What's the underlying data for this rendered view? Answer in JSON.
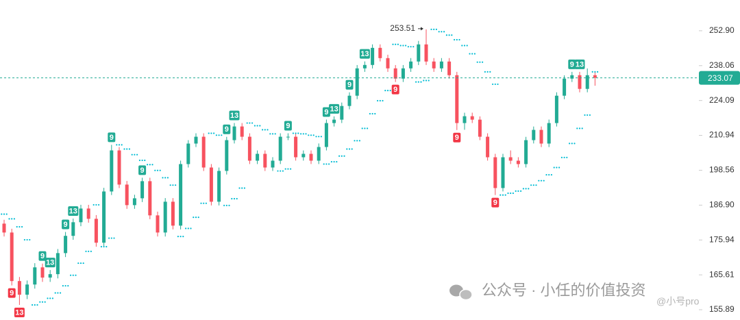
{
  "chart_data": {
    "type": "candlestick",
    "log_scale": true,
    "grid": false,
    "up_color": "#22ab94",
    "down_color": "#f7525f",
    "sar_color": "#00bcd4",
    "ylim": [
      153.14,
      266.76
    ],
    "yticks": [
      {
        "value": 252.9,
        "label": "252.90"
      },
      238.06,
      224.09,
      210.94,
      198.56,
      {
        "value": 186.9,
        "label": "186.90"
      },
      175.94,
      165.61,
      155.89
    ],
    "candles": [
      [
        181.0,
        182.2,
        177.0,
        178.23
      ],
      [
        178.23,
        179.4,
        162.6,
        163.84
      ],
      [
        163.84,
        165.0,
        157.2,
        160.01
      ],
      [
        160.01,
        164.0,
        158.8,
        162.86
      ],
      [
        162.86,
        169.0,
        161.7,
        167.78
      ],
      [
        167.78,
        168.9,
        163.6,
        164.83
      ],
      [
        164.83,
        167.0,
        163.6,
        165.81
      ],
      [
        165.81,
        173.2,
        164.6,
        171.98
      ],
      [
        171.98,
        178.4,
        170.8,
        177.2
      ],
      [
        177.2,
        182.6,
        176.0,
        181.44
      ],
      [
        181.44,
        187.0,
        180.2,
        185.8
      ],
      [
        185.8,
        187.0,
        181.3,
        182.52
      ],
      [
        182.52,
        183.7,
        173.9,
        175.11
      ],
      [
        175.11,
        192.6,
        173.9,
        191.38
      ],
      [
        191.38,
        207.5,
        190.2,
        205.51
      ],
      [
        205.51,
        206.7,
        192.5,
        193.68
      ],
      [
        193.68,
        194.9,
        185.7,
        186.9
      ],
      [
        186.9,
        190.3,
        185.7,
        189.13
      ],
      [
        189.13,
        196.0,
        187.9,
        194.83
      ],
      [
        194.83,
        196.0,
        182.4,
        183.61
      ],
      [
        183.61,
        184.8,
        177.0,
        178.23
      ],
      [
        178.23,
        189.2,
        177.0,
        188.01
      ],
      [
        188.01,
        189.2,
        179.2,
        180.37
      ],
      [
        180.37,
        201.9,
        179.2,
        200.69
      ],
      [
        200.69,
        209.2,
        199.5,
        207.96
      ],
      [
        207.96,
        211.7,
        206.7,
        210.44
      ],
      [
        210.44,
        211.7,
        198.3,
        199.5
      ],
      [
        199.5,
        200.7,
        186.8,
        188.01
      ],
      [
        188.01,
        199.5,
        186.8,
        198.33
      ],
      [
        198.33,
        210.4,
        197.1,
        209.2
      ],
      [
        209.2,
        215.5,
        208.0,
        214.22
      ],
      [
        214.22,
        215.5,
        209.2,
        210.44
      ],
      [
        210.44,
        211.7,
        200.7,
        201.88
      ],
      [
        201.88,
        205.5,
        200.7,
        204.29
      ],
      [
        204.29,
        205.5,
        198.3,
        199.5
      ],
      [
        199.5,
        203.1,
        198.3,
        201.88
      ],
      [
        201.88,
        211.7,
        200.7,
        210.44
      ],
      [
        210.44,
        211.7,
        209.2,
        210.44
      ],
      [
        210.44,
        211.7,
        201.9,
        203.08
      ],
      [
        203.08,
        205.5,
        201.9,
        204.29
      ],
      [
        204.29,
        205.5,
        200.7,
        201.88
      ],
      [
        201.88,
        208.0,
        200.7,
        206.73
      ],
      [
        206.73,
        216.8,
        205.5,
        215.49
      ],
      [
        215.49,
        218.0,
        214.2,
        216.77
      ],
      [
        216.77,
        223.3,
        215.5,
        221.97
      ],
      [
        221.97,
        227.3,
        220.7,
        225.96
      ],
      [
        225.96,
        238.3,
        224.6,
        236.93
      ],
      [
        236.93,
        239.8,
        235.5,
        238.34
      ],
      [
        238.34,
        247.0,
        236.9,
        245.51
      ],
      [
        245.51,
        247.0,
        239.8,
        241.18
      ],
      [
        241.18,
        242.6,
        235.5,
        236.93
      ],
      [
        236.93,
        238.3,
        231.4,
        232.76
      ],
      [
        232.76,
        238.3,
        231.4,
        236.93
      ],
      [
        236.93,
        241.2,
        235.5,
        239.76
      ],
      [
        239.76,
        248.5,
        238.3,
        246.98
      ],
      [
        246.98,
        253.51,
        238.3,
        239.76
      ],
      [
        239.76,
        241.2,
        235.5,
        236.93
      ],
      [
        236.93,
        241.2,
        235.5,
        239.76
      ],
      [
        239.76,
        241.2,
        232.8,
        234.14
      ],
      [
        234.14,
        235.5,
        212.9,
        215.49
      ],
      [
        215.49,
        219.4,
        213.0,
        218.06
      ],
      [
        218.06,
        219.4,
        215.5,
        216.77
      ],
      [
        216.77,
        218.0,
        209.2,
        210.44
      ],
      [
        210.44,
        211.7,
        201.9,
        203.08
      ],
      [
        203.08,
        204.3,
        190.2,
        192.52
      ],
      [
        192.52,
        204.3,
        191.4,
        203.08
      ],
      [
        203.08,
        205.5,
        200.7,
        201.88
      ],
      [
        201.88,
        203.1,
        199.5,
        200.69
      ],
      [
        200.69,
        210.4,
        199.5,
        209.2
      ],
      [
        209.2,
        214.2,
        208.0,
        212.95
      ],
      [
        212.95,
        214.2,
        206.7,
        207.96
      ],
      [
        207.96,
        216.8,
        206.7,
        215.49
      ],
      [
        215.49,
        227.3,
        214.2,
        225.96
      ],
      [
        225.96,
        234.1,
        224.6,
        232.76
      ],
      [
        232.76,
        235.5,
        231.4,
        234.14
      ],
      [
        234.14,
        235.5,
        227.3,
        228.65
      ],
      [
        228.65,
        236.9,
        227.3,
        234.14
      ],
      [
        234.14,
        235.5,
        229.9,
        233.07
      ]
    ],
    "sar": [
      184.0,
      182.5,
      180.0,
      176.0,
      157.2,
      158.0,
      159.0,
      160.5,
      162.5,
      165.5,
      169.0,
      172.5,
      187.0,
      173.9,
      176.5,
      207.5,
      206.0,
      204.0,
      202.0,
      200.5,
      198.5,
      196.0,
      193.5,
      177.0,
      179.5,
      183.0,
      187.5,
      211.7,
      211.0,
      186.8,
      189.0,
      192.5,
      215.5,
      214.5,
      213.0,
      211.5,
      198.3,
      199.0,
      211.7,
      211.5,
      211.0,
      210.5,
      200.7,
      201.5,
      203.5,
      206.0,
      209.0,
      213.5,
      219.0,
      224.0,
      228.0,
      247.0,
      246.5,
      246.0,
      231.4,
      232.0,
      253.51,
      252.5,
      251.0,
      249.0,
      246.5,
      243.0,
      239.5,
      235.5,
      230.5,
      190.2,
      190.8,
      191.5,
      192.3,
      193.5,
      195.0,
      197.0,
      199.5,
      203.0,
      208.0,
      213.5,
      218.5,
      235.5
    ],
    "markers": [
      {
        "index": 5,
        "text": 9,
        "side": "above"
      },
      {
        "index": 6,
        "text": 13,
        "side": "above"
      },
      {
        "index": 8,
        "text": 9,
        "side": "above"
      },
      {
        "index": 9,
        "text": 13,
        "side": "above"
      },
      {
        "index": 14,
        "text": 9,
        "side": "above"
      },
      {
        "index": 18,
        "text": 9,
        "side": "above"
      },
      {
        "index": 29,
        "text": 9,
        "side": "above"
      },
      {
        "index": 30,
        "text": 13,
        "side": "above"
      },
      {
        "index": 37,
        "text": 9,
        "side": "above"
      },
      {
        "index": 42,
        "text": 9,
        "side": "above"
      },
      {
        "index": 43,
        "text": 13,
        "side": "above"
      },
      {
        "index": 45,
        "text": 9,
        "side": "above"
      },
      {
        "index": 47,
        "text": 13,
        "side": "above"
      },
      {
        "index": 74,
        "text": 9,
        "side": "above"
      },
      {
        "index": 75,
        "text": 13,
        "side": "above"
      },
      {
        "index": 1,
        "text": 9,
        "side": "below"
      },
      {
        "index": 2,
        "text": 13,
        "side": "below"
      },
      {
        "index": 51,
        "text": 9,
        "side": "below"
      },
      {
        "index": 59,
        "text": 9,
        "side": "below"
      },
      {
        "index": 64,
        "text": 9,
        "side": "below"
      }
    ],
    "watermark": [
      "公众号 · 小任的价值投资",
      "@小号pro"
    ]
  }
}
